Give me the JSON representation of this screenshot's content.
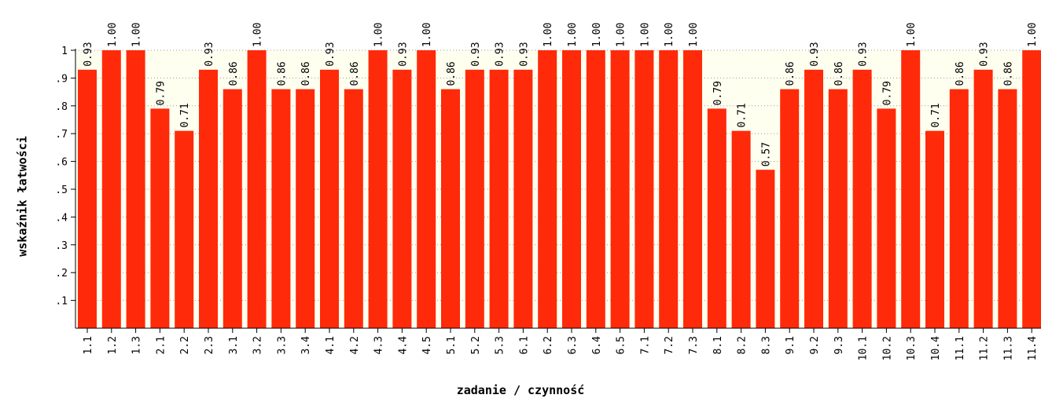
{
  "chart_data": {
    "type": "bar",
    "ylabel": "wskaźnik łatwości",
    "xlabel": "zadanie / czynność",
    "ylim": [
      0,
      1
    ],
    "y_ticks": [
      ".1",
      ".2",
      ".3",
      ".4",
      ".5",
      ".6",
      ".7",
      ".8",
      ".9",
      "1"
    ],
    "grid": "horizontal dotted",
    "categories": [
      "1.1",
      "1.2",
      "1.3",
      "2.1",
      "2.2",
      "2.3",
      "3.1",
      "3.2",
      "3.3",
      "3.4",
      "4.1",
      "4.2",
      "4.3",
      "4.4",
      "4.5",
      "5.1",
      "5.2",
      "5.3",
      "6.1",
      "6.2",
      "6.3",
      "6.4",
      "6.5",
      "7.1",
      "7.2",
      "7.3",
      "8.1",
      "8.2",
      "8.3",
      "9.1",
      "9.2",
      "9.3",
      "10.1",
      "10.2",
      "10.3",
      "10.4",
      "11.1",
      "11.2",
      "11.3",
      "11.4"
    ],
    "values": [
      0.93,
      1.0,
      1.0,
      0.79,
      0.71,
      0.93,
      0.86,
      1.0,
      0.86,
      0.86,
      0.93,
      0.86,
      1.0,
      0.93,
      1.0,
      0.86,
      0.93,
      0.93,
      0.93,
      1.0,
      1.0,
      1.0,
      1.0,
      1.0,
      1.0,
      1.0,
      0.79,
      0.71,
      0.57,
      0.86,
      0.93,
      0.86,
      0.93,
      0.79,
      1.0,
      0.71,
      0.86,
      0.93,
      0.86,
      1.0
    ],
    "value_labels": [
      "0.93",
      "1.00",
      "1.00",
      "0.79",
      "0.71",
      "0.93",
      "0.86",
      "1.00",
      "0.86",
      "0.86",
      "0.93",
      "0.86",
      "1.00",
      "0.93",
      "1.00",
      "0.86",
      "0.93",
      "0.93",
      "0.93",
      "1.00",
      "1.00",
      "1.00",
      "1.00",
      "1.00",
      "1.00",
      "1.00",
      "0.79",
      "0.71",
      "0.57",
      "0.86",
      "0.93",
      "0.86",
      "0.93",
      "0.79",
      "1.00",
      "0.71",
      "0.86",
      "0.93",
      "0.86",
      "1.00"
    ],
    "colors": {
      "bar": "#ff2a0a",
      "plot_background": "#fffff0",
      "grid": "#999999"
    }
  }
}
